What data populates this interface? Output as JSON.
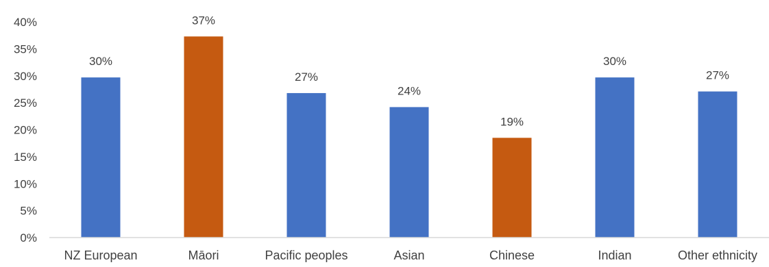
{
  "chart_data": {
    "type": "bar",
    "title": "",
    "xlabel": "",
    "ylabel": "",
    "ylim": [
      0,
      40
    ],
    "yticks": [
      0,
      5,
      10,
      15,
      20,
      25,
      30,
      35,
      40
    ],
    "ytick_labels": [
      "0%",
      "5%",
      "10%",
      "15%",
      "20%",
      "25%",
      "30%",
      "35%",
      "40%"
    ],
    "grid": false,
    "legend": "none",
    "categories": [
      "NZ European",
      "Māori",
      "Pacific peoples",
      "Asian",
      "Chinese",
      "Indian",
      "Other ethnicity"
    ],
    "values": [
      29.7,
      37.3,
      26.8,
      24.2,
      18.5,
      29.7,
      27.1
    ],
    "data_labels": [
      "30%",
      "37%",
      "27%",
      "24%",
      "19%",
      "30%",
      "27%"
    ],
    "bar_colors": [
      "#4472C4",
      "#C55A11",
      "#4472C4",
      "#4472C4",
      "#C55A11",
      "#4472C4",
      "#4472C4"
    ],
    "axis_color": "#D9D9D9"
  }
}
